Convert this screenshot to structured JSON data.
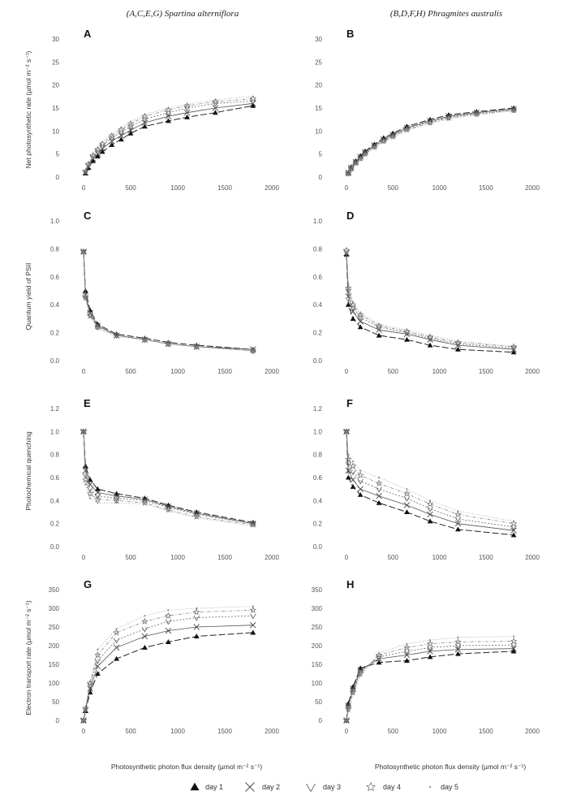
{
  "column_titles": [
    "(A,C,E,G) Spartina alterniflora",
    "(B,D,F,H) Phragmites australis"
  ],
  "row_ylabels": [
    "Net photosynthetic rate (µmol m⁻² s⁻¹)",
    "Quantum yield of PSII",
    "Photochemical quenching",
    "Electron transport rate (µmol m⁻² s⁻¹)"
  ],
  "xlabel": "Photosynthetic photon flux density (µmol m⁻² s⁻¹)",
  "legend": [
    {
      "label": "day 1",
      "marker": "triangle-filled"
    },
    {
      "label": "day 2",
      "marker": "cross"
    },
    {
      "label": "day 3",
      "marker": "triangle-open-down"
    },
    {
      "label": "day 4",
      "marker": "star-open"
    },
    {
      "label": "day 5",
      "marker": "dot"
    }
  ],
  "chart_data": [
    {
      "panel": "A",
      "type": "scatter",
      "xlim": [
        0,
        2000
      ],
      "ylim": [
        0,
        30
      ],
      "xticks": [
        "0",
        "500",
        "1000",
        "1500",
        "2000"
      ],
      "yticks": [
        "0",
        "5",
        "10",
        "15",
        "20",
        "25",
        "30"
      ],
      "x": [
        20,
        50,
        100,
        150,
        200,
        300,
        400,
        500,
        650,
        900,
        1100,
        1400,
        1800
      ],
      "series": [
        {
          "name": "day 1",
          "values": [
            0.8,
            2,
            3.5,
            4.5,
            5.5,
            7,
            8.2,
            9.5,
            11,
            12.2,
            13,
            14,
            15.5
          ]
        },
        {
          "name": "day 2",
          "values": [
            1,
            2.3,
            4,
            5,
            6.2,
            7.8,
            9,
            10.2,
            11.8,
            13.2,
            14,
            15,
            16
          ]
        },
        {
          "name": "day 3",
          "values": [
            1.1,
            2.6,
            4.4,
            5.6,
            6.8,
            8.5,
            9.8,
            11,
            12.6,
            14,
            15,
            16,
            16.5
          ]
        },
        {
          "name": "day 4",
          "values": [
            1.2,
            2.8,
            4.7,
            6,
            7.2,
            9,
            10.3,
            11.6,
            13.2,
            14.6,
            15.5,
            16.4,
            17
          ]
        },
        {
          "name": "day 5",
          "values": [
            1.3,
            3,
            5,
            6.3,
            7.6,
            9.4,
            10.8,
            12,
            13.6,
            15,
            15.8,
            16.8,
            17.5
          ]
        }
      ]
    },
    {
      "panel": "B",
      "type": "scatter",
      "xlim": [
        0,
        2000
      ],
      "ylim": [
        0,
        30
      ],
      "xticks": [
        "0",
        "500",
        "1000",
        "1500",
        "2000"
      ],
      "yticks": [
        "0",
        "5",
        "10",
        "15",
        "20",
        "25",
        "30"
      ],
      "x": [
        20,
        50,
        100,
        150,
        200,
        300,
        400,
        500,
        650,
        900,
        1100,
        1400,
        1800
      ],
      "series": [
        {
          "name": "day 1",
          "values": [
            1,
            2.2,
            3.5,
            4.6,
            5.6,
            7.1,
            8.5,
            9.5,
            11,
            12.5,
            13.5,
            14.2,
            15
          ]
        },
        {
          "name": "day 2",
          "values": [
            0.9,
            2,
            3.3,
            4.4,
            5.4,
            6.9,
            8.2,
            9.2,
            10.7,
            12.2,
            13.2,
            14,
            14.8
          ]
        },
        {
          "name": "day 3",
          "values": [
            0.8,
            1.9,
            3.2,
            4.2,
            5.2,
            6.7,
            8,
            9,
            10.5,
            12,
            13,
            13.8,
            14.6
          ]
        },
        {
          "name": "day 4",
          "values": [
            0.8,
            1.8,
            3,
            4,
            5,
            6.5,
            7.8,
            8.8,
            10.3,
            11.8,
            12.8,
            13.7,
            14.5
          ]
        },
        {
          "name": "day 5",
          "values": [
            0.7,
            1.7,
            2.9,
            3.9,
            4.9,
            6.3,
            7.6,
            8.6,
            10.1,
            11.6,
            12.6,
            13.5,
            14.4
          ]
        }
      ]
    },
    {
      "panel": "C",
      "type": "scatter",
      "xlim": [
        0,
        2000
      ],
      "ylim": [
        0,
        1.0
      ],
      "xticks": [
        "0",
        "500",
        "1000",
        "1500",
        "2000"
      ],
      "yticks": [
        "0.0",
        "0.2",
        "0.4",
        "0.6",
        "0.8",
        "1.0"
      ],
      "x": [
        0,
        20,
        70,
        150,
        350,
        650,
        900,
        1200,
        1800
      ],
      "series": [
        {
          "name": "day 1",
          "values": [
            0.78,
            0.5,
            0.36,
            0.26,
            0.19,
            0.16,
            0.13,
            0.11,
            0.08
          ]
        },
        {
          "name": "day 2",
          "values": [
            0.78,
            0.47,
            0.34,
            0.25,
            0.18,
            0.15,
            0.12,
            0.1,
            0.08
          ]
        },
        {
          "name": "day 3",
          "values": [
            0.78,
            0.46,
            0.33,
            0.24,
            0.18,
            0.15,
            0.12,
            0.1,
            0.07
          ]
        },
        {
          "name": "day 4",
          "values": [
            0.78,
            0.45,
            0.32,
            0.24,
            0.18,
            0.15,
            0.12,
            0.1,
            0.07
          ]
        },
        {
          "name": "day 5",
          "values": [
            0.78,
            0.44,
            0.31,
            0.23,
            0.17,
            0.15,
            0.12,
            0.1,
            0.07
          ]
        }
      ]
    },
    {
      "panel": "D",
      "type": "scatter",
      "xlim": [
        0,
        2000
      ],
      "ylim": [
        0,
        1.0
      ],
      "xticks": [
        "0",
        "500",
        "1000",
        "1500",
        "2000"
      ],
      "yticks": [
        "0.0",
        "0.2",
        "0.4",
        "0.6",
        "0.8",
        "1.0"
      ],
      "x": [
        0,
        20,
        70,
        150,
        350,
        650,
        900,
        1200,
        1800
      ],
      "series": [
        {
          "name": "day 1",
          "values": [
            0.76,
            0.4,
            0.3,
            0.24,
            0.18,
            0.15,
            0.11,
            0.08,
            0.06
          ]
        },
        {
          "name": "day 2",
          "values": [
            0.77,
            0.46,
            0.35,
            0.28,
            0.22,
            0.19,
            0.15,
            0.11,
            0.08
          ]
        },
        {
          "name": "day 3",
          "values": [
            0.78,
            0.5,
            0.38,
            0.31,
            0.24,
            0.2,
            0.16,
            0.12,
            0.09
          ]
        },
        {
          "name": "day 4",
          "values": [
            0.79,
            0.52,
            0.4,
            0.33,
            0.25,
            0.21,
            0.17,
            0.13,
            0.1
          ]
        },
        {
          "name": "day 5",
          "values": [
            0.8,
            0.55,
            0.42,
            0.34,
            0.26,
            0.22,
            0.18,
            0.14,
            0.1
          ]
        }
      ]
    },
    {
      "panel": "E",
      "type": "scatter",
      "xlim": [
        0,
        2000
      ],
      "ylim": [
        0,
        1.2
      ],
      "xticks": [
        "0",
        "500",
        "1000",
        "1500",
        "2000"
      ],
      "yticks": [
        "0.0",
        "0.2",
        "0.4",
        "0.6",
        "0.8",
        "1.0",
        "1.2"
      ],
      "x": [
        0,
        20,
        70,
        150,
        350,
        650,
        900,
        1200,
        1800
      ],
      "series": [
        {
          "name": "day 1",
          "values": [
            1.0,
            0.7,
            0.58,
            0.5,
            0.46,
            0.42,
            0.36,
            0.3,
            0.21
          ]
        },
        {
          "name": "day 2",
          "values": [
            1.0,
            0.66,
            0.54,
            0.47,
            0.44,
            0.41,
            0.35,
            0.29,
            0.2
          ]
        },
        {
          "name": "day 3",
          "values": [
            1.0,
            0.62,
            0.5,
            0.44,
            0.42,
            0.4,
            0.34,
            0.28,
            0.2
          ]
        },
        {
          "name": "day 4",
          "values": [
            1.0,
            0.58,
            0.46,
            0.41,
            0.4,
            0.38,
            0.32,
            0.26,
            0.19
          ]
        },
        {
          "name": "day 5",
          "values": [
            1.0,
            0.54,
            0.42,
            0.38,
            0.38,
            0.37,
            0.31,
            0.25,
            0.18
          ]
        }
      ]
    },
    {
      "panel": "F",
      "type": "scatter",
      "xlim": [
        0,
        2000
      ],
      "ylim": [
        0,
        1.2
      ],
      "xticks": [
        "0",
        "500",
        "1000",
        "1500",
        "2000"
      ],
      "yticks": [
        "0.0",
        "0.2",
        "0.4",
        "0.6",
        "0.8",
        "1.0",
        "1.2"
      ],
      "x": [
        0,
        20,
        70,
        150,
        350,
        650,
        900,
        1200,
        1800
      ],
      "series": [
        {
          "name": "day 1",
          "values": [
            1.0,
            0.6,
            0.52,
            0.45,
            0.38,
            0.3,
            0.22,
            0.15,
            0.1
          ]
        },
        {
          "name": "day 2",
          "values": [
            1.0,
            0.66,
            0.58,
            0.5,
            0.44,
            0.36,
            0.28,
            0.2,
            0.14
          ]
        },
        {
          "name": "day 3",
          "values": [
            1.0,
            0.72,
            0.65,
            0.57,
            0.5,
            0.42,
            0.33,
            0.24,
            0.17
          ]
        },
        {
          "name": "day 4",
          "values": [
            1.0,
            0.76,
            0.7,
            0.62,
            0.55,
            0.46,
            0.37,
            0.28,
            0.2
          ]
        },
        {
          "name": "day 5",
          "values": [
            1.0,
            0.8,
            0.74,
            0.66,
            0.6,
            0.5,
            0.4,
            0.31,
            0.22
          ]
        }
      ]
    },
    {
      "panel": "G",
      "type": "scatter",
      "xlim": [
        0,
        2000
      ],
      "ylim": [
        0,
        350
      ],
      "xticks": [
        "0",
        "500",
        "1000",
        "1500",
        "2000"
      ],
      "yticks": [
        "0",
        "50",
        "100",
        "150",
        "200",
        "250",
        "300",
        "350"
      ],
      "x": [
        0,
        20,
        70,
        150,
        350,
        650,
        900,
        1200,
        1800
      ],
      "series": [
        {
          "name": "day 1",
          "values": [
            0,
            25,
            75,
            125,
            165,
            195,
            210,
            225,
            235
          ]
        },
        {
          "name": "day 2",
          "values": [
            0,
            28,
            85,
            145,
            195,
            225,
            240,
            250,
            255
          ]
        },
        {
          "name": "day 3",
          "values": [
            0,
            30,
            95,
            160,
            215,
            245,
            265,
            275,
            280
          ]
        },
        {
          "name": "day 4",
          "values": [
            0,
            32,
            100,
            175,
            235,
            265,
            280,
            290,
            295
          ]
        },
        {
          "name": "day 5",
          "values": [
            0,
            35,
            105,
            190,
            245,
            280,
            295,
            300,
            305
          ]
        }
      ]
    },
    {
      "panel": "H",
      "type": "scatter",
      "xlim": [
        0,
        2000
      ],
      "ylim": [
        0,
        350
      ],
      "xticks": [
        "0",
        "500",
        "1000",
        "1500",
        "2000"
      ],
      "yticks": [
        "0",
        "50",
        "100",
        "150",
        "200",
        "250",
        "300",
        "350"
      ],
      "x": [
        0,
        20,
        70,
        150,
        350,
        650,
        900,
        1200,
        1800
      ],
      "series": [
        {
          "name": "day 1",
          "values": [
            0,
            45,
            90,
            140,
            155,
            160,
            170,
            178,
            185
          ]
        },
        {
          "name": "day 2",
          "values": [
            0,
            40,
            85,
            135,
            165,
            175,
            185,
            190,
            192
          ]
        },
        {
          "name": "day 3",
          "values": [
            0,
            35,
            80,
            130,
            170,
            185,
            195,
            200,
            202
          ]
        },
        {
          "name": "day 4",
          "values": [
            0,
            30,
            75,
            125,
            175,
            195,
            205,
            210,
            212
          ]
        },
        {
          "name": "day 5",
          "values": [
            0,
            25,
            70,
            120,
            180,
            205,
            215,
            222,
            225
          ]
        }
      ]
    }
  ]
}
